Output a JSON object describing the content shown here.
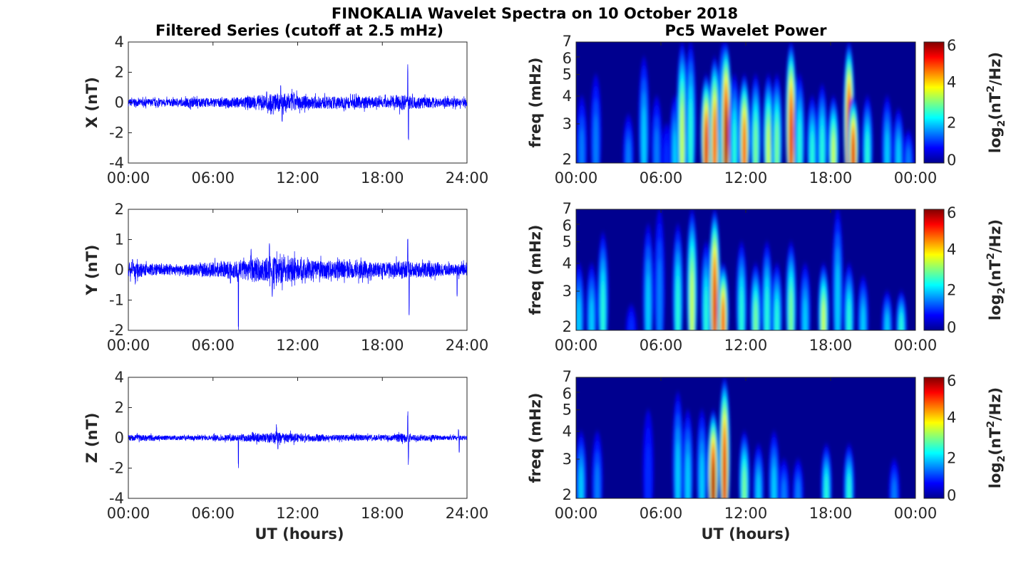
{
  "chart_data": {
    "type": "line+heatmap",
    "title": "FINOKALIA Wavelet Spectra on 10 October 2018",
    "left_title": "Filtered Series (cutoff at 2.5 mHz)",
    "right_title": "Pc5 Wavelet Power",
    "xlabel": "UT (hours)",
    "left_xticks": [
      "00:00",
      "06:00",
      "12:00",
      "18:00",
      "24:00"
    ],
    "right_xticks": [
      "00:00",
      "06:00",
      "12:00",
      "18:00",
      "00:00"
    ],
    "right_ylabel": "freq (mHz)",
    "right_yticks": [
      "2",
      "3",
      "4",
      "5",
      "6",
      "7"
    ],
    "freq_range_mHz": [
      2,
      7
    ],
    "colorbar": {
      "label_main": "log",
      "label_sub": "2",
      "label_rest": "(nT",
      "label_sup": "2",
      "label_end": "/Hz)",
      "ticks": [
        "0",
        "2",
        "4",
        "6"
      ],
      "range": [
        0,
        6
      ],
      "colormap": "jet"
    },
    "series_color": "#0000ff",
    "panels": [
      {
        "component": "X",
        "ylabel": "X (nT)",
        "ylim": [
          -4,
          4
        ],
        "yticks": [
          "-4",
          "-2",
          "0",
          "2",
          "4"
        ],
        "hourly_amplitude": [
          0.25,
          0.25,
          0.25,
          0.25,
          0.3,
          0.3,
          0.3,
          0.35,
          0.4,
          0.5,
          0.6,
          0.6,
          0.45,
          0.4,
          0.4,
          0.4,
          0.4,
          0.35,
          0.35,
          0.5,
          0.4,
          0.35,
          0.3,
          0.3
        ],
        "spikes": [
          [
            10.8,
            1.4
          ],
          [
            10.9,
            -1.4
          ],
          [
            9.8,
            0.8
          ],
          [
            15.9,
            0.6
          ],
          [
            19.8,
            2.6
          ],
          [
            19.85,
            -2.5
          ]
        ],
        "wavelet_bursts": [
          [
            0.4,
            1.5,
            4
          ],
          [
            1.4,
            1.5,
            5
          ],
          [
            3.7,
            1.5,
            3.3
          ],
          [
            4.8,
            2,
            6
          ],
          [
            5.7,
            1.5,
            4
          ],
          [
            6.4,
            1,
            3
          ],
          [
            7.0,
            2,
            4
          ],
          [
            7.5,
            3.5,
            7
          ],
          [
            8.1,
            2.5,
            7
          ],
          [
            9.2,
            5.5,
            5
          ],
          [
            9.8,
            5,
            6
          ],
          [
            10.4,
            4,
            7
          ],
          [
            10.6,
            6,
            7
          ],
          [
            11.2,
            2.5,
            5
          ],
          [
            11.9,
            5,
            5
          ],
          [
            12.7,
            3,
            5
          ],
          [
            13.6,
            3.5,
            5
          ],
          [
            14.2,
            3,
            5
          ],
          [
            15.2,
            5.5,
            7
          ],
          [
            15.8,
            2.5,
            5
          ],
          [
            16.7,
            2.5,
            4
          ],
          [
            17.4,
            2.5,
            4.5
          ],
          [
            18.2,
            3.5,
            4
          ],
          [
            19.3,
            6,
            7
          ],
          [
            19.6,
            5.5,
            4
          ],
          [
            20.6,
            2.5,
            4
          ],
          [
            22.0,
            2,
            4
          ],
          [
            22.8,
            2,
            3.5
          ],
          [
            23.5,
            1.5,
            2.8
          ]
        ]
      },
      {
        "component": "Y",
        "ylabel": "Y (nT)",
        "ylim": [
          -2,
          2
        ],
        "yticks": [
          "-2",
          "-1",
          "0",
          "1",
          "2"
        ],
        "hourly_amplitude": [
          0.25,
          0.2,
          0.2,
          0.15,
          0.2,
          0.25,
          0.25,
          0.3,
          0.35,
          0.4,
          0.45,
          0.4,
          0.35,
          0.3,
          0.3,
          0.3,
          0.3,
          0.25,
          0.25,
          0.3,
          0.25,
          0.25,
          0.2,
          0.2
        ],
        "spikes": [
          [
            0.3,
            0.4
          ],
          [
            0.5,
            -0.5
          ],
          [
            7.8,
            -2.0
          ],
          [
            8.7,
            0.7
          ],
          [
            10.0,
            1.1
          ],
          [
            10.2,
            -0.9
          ],
          [
            19.8,
            1.1
          ],
          [
            19.9,
            -1.5
          ],
          [
            23.3,
            -1.0
          ]
        ],
        "wavelet_bursts": [
          [
            0.2,
            2,
            4
          ],
          [
            1.1,
            2,
            4
          ],
          [
            1.9,
            2.5,
            5.5
          ],
          [
            3.9,
            1,
            2.6
          ],
          [
            5.1,
            2,
            6
          ],
          [
            5.9,
            1.5,
            7
          ],
          [
            7.2,
            2.5,
            6
          ],
          [
            8.2,
            3.5,
            7
          ],
          [
            9.2,
            2.5,
            5
          ],
          [
            9.8,
            5.5,
            7
          ],
          [
            10.4,
            5,
            4
          ],
          [
            11.7,
            2.5,
            5
          ],
          [
            12.7,
            3,
            4
          ],
          [
            13.5,
            2.5,
            5
          ],
          [
            14.2,
            2.5,
            4
          ],
          [
            15.2,
            3,
            5
          ],
          [
            16.2,
            2,
            4
          ],
          [
            17.5,
            3.5,
            4
          ],
          [
            18.5,
            2,
            7
          ],
          [
            19.3,
            2.5,
            4
          ],
          [
            20.3,
            2,
            3.5
          ],
          [
            22.0,
            2,
            3
          ],
          [
            23.0,
            2.5,
            3
          ]
        ]
      },
      {
        "component": "Z",
        "ylabel": "Z (nT)",
        "ylim": [
          -4,
          4
        ],
        "yticks": [
          "-4",
          "-2",
          "0",
          "2",
          "4"
        ],
        "hourly_amplitude": [
          0.2,
          0.2,
          0.15,
          0.15,
          0.15,
          0.15,
          0.2,
          0.2,
          0.25,
          0.3,
          0.35,
          0.3,
          0.25,
          0.25,
          0.2,
          0.2,
          0.2,
          0.2,
          0.2,
          0.3,
          0.2,
          0.2,
          0.15,
          0.15
        ],
        "spikes": [
          [
            7.8,
            -2.1
          ],
          [
            10.5,
            0.9
          ],
          [
            10.6,
            -0.8
          ],
          [
            19.8,
            2.0
          ],
          [
            19.85,
            -1.8
          ],
          [
            23.4,
            0.6
          ],
          [
            23.45,
            -1.0
          ]
        ],
        "wavelet_bursts": [
          [
            0.35,
            2,
            4
          ],
          [
            1.5,
            1.5,
            4
          ],
          [
            5.1,
            1,
            5
          ],
          [
            7.2,
            2,
            6
          ],
          [
            7.9,
            2,
            5
          ],
          [
            8.9,
            2,
            5
          ],
          [
            9.7,
            6,
            5
          ],
          [
            10.5,
            5.5,
            7
          ],
          [
            11.9,
            3,
            4
          ],
          [
            12.9,
            2,
            3.5
          ],
          [
            14.0,
            2,
            4
          ],
          [
            14.7,
            1.5,
            3
          ],
          [
            15.7,
            1.5,
            3
          ],
          [
            17.7,
            2.5,
            3.5
          ],
          [
            19.3,
            2.5,
            3.5
          ],
          [
            22.5,
            1.5,
            3
          ]
        ]
      }
    ]
  }
}
